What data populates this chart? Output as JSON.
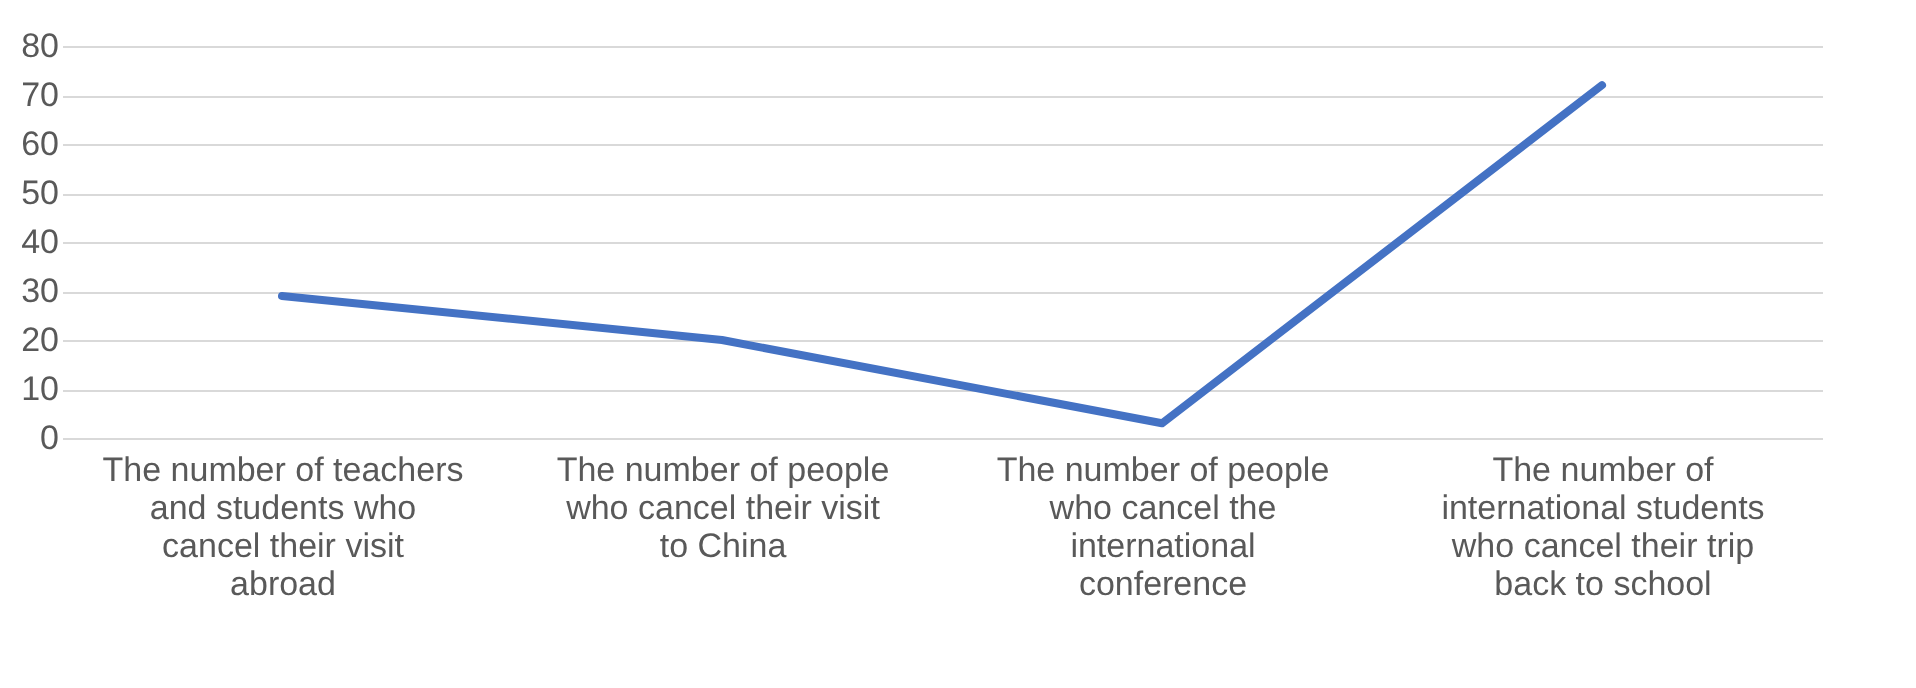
{
  "chart_data": {
    "type": "line",
    "categories": [
      "The number of teachers and students who cancel their visit abroad",
      "The number of people who cancel their visit to China",
      "The number of people who cancel the international conference",
      "The number of international students who cancel their trip back to school"
    ],
    "series": [
      {
        "color": "#4472c4",
        "values": [
          29,
          20,
          3,
          72
        ]
      }
    ],
    "ylim": [
      0,
      80
    ],
    "yticks": [
      0,
      10,
      20,
      30,
      40,
      50,
      60,
      70,
      80
    ],
    "grid": "y",
    "marker": "none",
    "line_style": "solid"
  }
}
